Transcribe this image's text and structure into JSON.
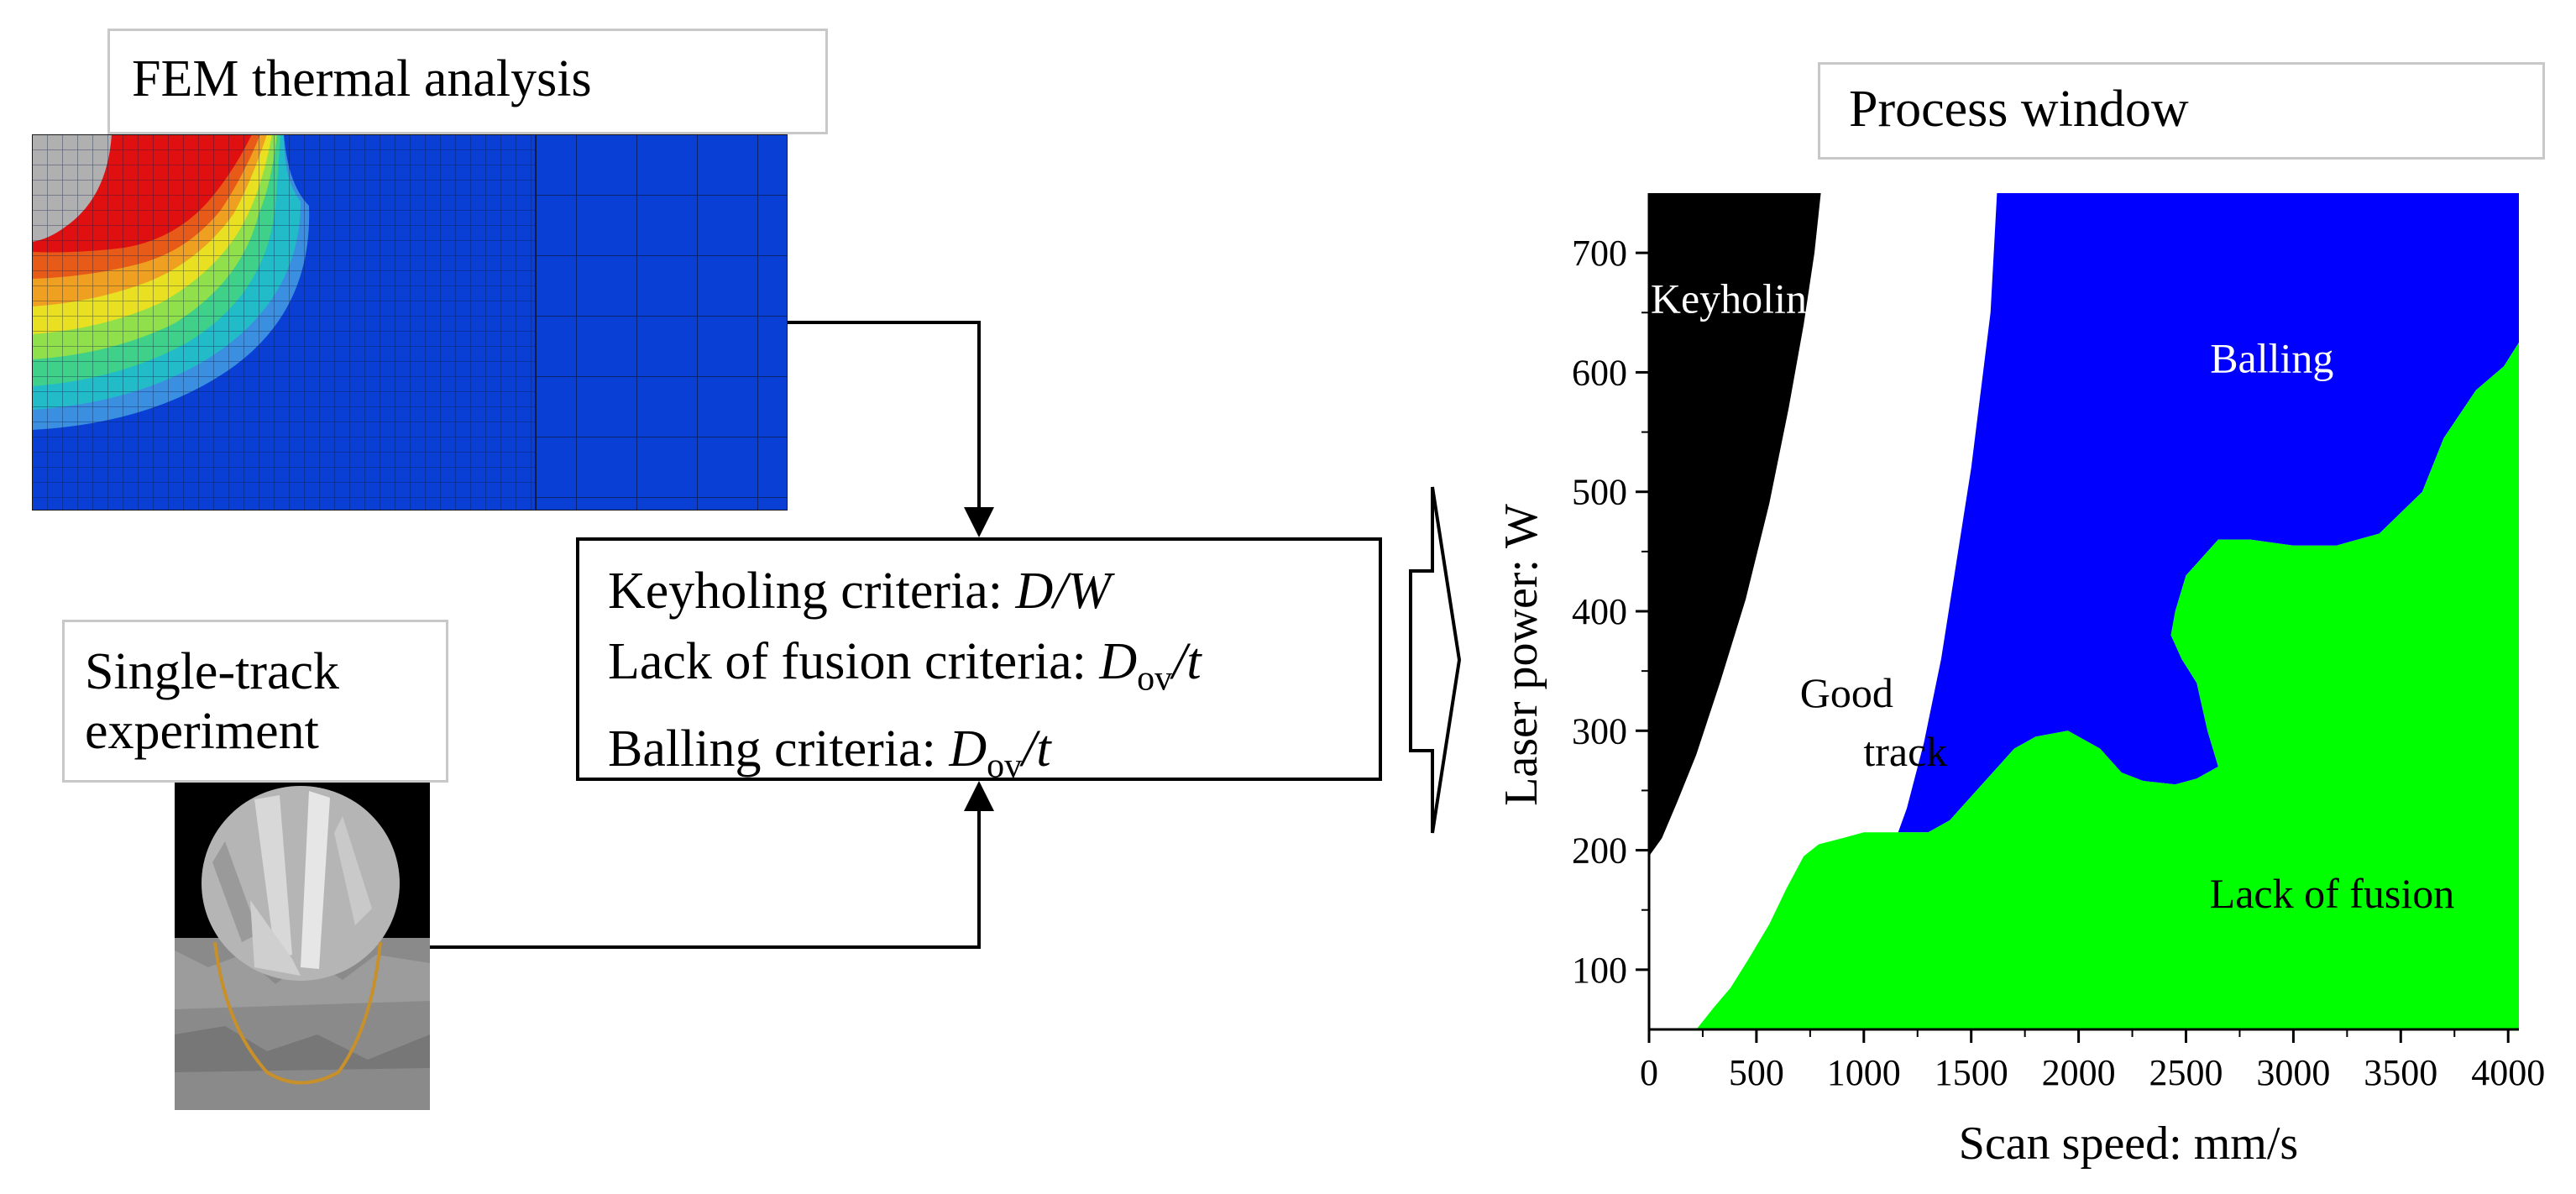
{
  "fem": {
    "label": "FEM thermal analysis"
  },
  "single_track": {
    "label_line1": "Single-track",
    "label_line2": "experiment"
  },
  "criteria": {
    "keyholing_label": "Keyholing criteria: ",
    "keyholing_expr": "D/W",
    "lof_label": "Lack of fusion criteria: ",
    "lof_var": "D",
    "lof_sub": "ov",
    "lof_tail": "/t",
    "balling_label": "Balling criteria: ",
    "balling_var": "D",
    "balling_sub": "ov",
    "balling_tail": "/t"
  },
  "process_window": {
    "label": "Process window"
  },
  "chart_data": {
    "type": "area",
    "title": "Process window",
    "xlabel": "Scan speed: mm/s",
    "ylabel": "Laser power: W",
    "xlim": [
      0,
      4050
    ],
    "ylim": [
      50,
      750
    ],
    "x_ticks": [
      0,
      500,
      1000,
      1500,
      2000,
      2500,
      3000,
      3500,
      4000
    ],
    "y_ticks": [
      100,
      200,
      300,
      400,
      500,
      600,
      700
    ],
    "regions": [
      {
        "name": "Keyholing",
        "color": "#000000",
        "label_color": "#ffffff",
        "label_at": [
          420,
          650
        ],
        "polygon": [
          [
            0,
            750
          ],
          [
            0,
            195
          ],
          [
            60,
            210
          ],
          [
            130,
            240
          ],
          [
            220,
            280
          ],
          [
            330,
            340
          ],
          [
            450,
            410
          ],
          [
            560,
            490
          ],
          [
            650,
            570
          ],
          [
            720,
            640
          ],
          [
            770,
            700
          ],
          [
            800,
            750
          ]
        ]
      },
      {
        "name": "Good track",
        "color": "#ffffff",
        "label_color": "#000000",
        "label_lines": [
          "Good",
          "track"
        ],
        "label_at": [
          920,
          320
        ]
      },
      {
        "name": "Balling",
        "color": "#0000ff",
        "label_color": "#ffffff",
        "label_at": [
          2900,
          600
        ],
        "polygon": [
          [
            1620,
            750
          ],
          [
            1590,
            650
          ],
          [
            1500,
            520
          ],
          [
            1430,
            440
          ],
          [
            1360,
            360
          ],
          [
            1280,
            290
          ],
          [
            1200,
            235
          ],
          [
            1160,
            215
          ],
          [
            1300,
            215
          ],
          [
            1400,
            225
          ],
          [
            1500,
            245
          ],
          [
            1600,
            265
          ],
          [
            1700,
            285
          ],
          [
            1800,
            295
          ],
          [
            1950,
            300
          ],
          [
            2000,
            295
          ],
          [
            2100,
            285
          ],
          [
            2150,
            275
          ],
          [
            2200,
            265
          ],
          [
            2300,
            258
          ],
          [
            2450,
            255
          ],
          [
            2550,
            260
          ],
          [
            2650,
            270
          ],
          [
            2600,
            300
          ],
          [
            2550,
            340
          ],
          [
            2480,
            360
          ],
          [
            2430,
            380
          ],
          [
            2450,
            400
          ],
          [
            2500,
            430
          ],
          [
            2550,
            440
          ],
          [
            2650,
            460
          ],
          [
            2800,
            460
          ],
          [
            3000,
            455
          ],
          [
            3200,
            455
          ],
          [
            3400,
            465
          ],
          [
            3600,
            500
          ],
          [
            3700,
            545
          ],
          [
            3850,
            585
          ],
          [
            3980,
            605
          ],
          [
            4050,
            625
          ],
          [
            4050,
            750
          ]
        ]
      },
      {
        "name": "Lack of fusion",
        "color": "#00ff00",
        "label_color": "#000000",
        "label_at": [
          3180,
          152
        ],
        "polygon": [
          [
            220,
            50
          ],
          [
            300,
            68
          ],
          [
            380,
            85
          ],
          [
            460,
            108
          ],
          [
            560,
            138
          ],
          [
            640,
            168
          ],
          [
            720,
            195
          ],
          [
            790,
            205
          ],
          [
            900,
            210
          ],
          [
            1000,
            215
          ],
          [
            1160,
            215
          ],
          [
            1300,
            215
          ],
          [
            1400,
            225
          ],
          [
            1500,
            245
          ],
          [
            1600,
            265
          ],
          [
            1700,
            285
          ],
          [
            1800,
            295
          ],
          [
            1950,
            300
          ],
          [
            2000,
            295
          ],
          [
            2100,
            285
          ],
          [
            2150,
            275
          ],
          [
            2200,
            265
          ],
          [
            2300,
            258
          ],
          [
            2450,
            255
          ],
          [
            2550,
            260
          ],
          [
            2650,
            270
          ],
          [
            2600,
            300
          ],
          [
            2550,
            340
          ],
          [
            2480,
            360
          ],
          [
            2430,
            380
          ],
          [
            2450,
            400
          ],
          [
            2500,
            430
          ],
          [
            2550,
            440
          ],
          [
            2650,
            460
          ],
          [
            2800,
            460
          ],
          [
            3000,
            455
          ],
          [
            3200,
            455
          ],
          [
            3400,
            465
          ],
          [
            3600,
            500
          ],
          [
            3700,
            545
          ],
          [
            3850,
            585
          ],
          [
            3980,
            605
          ],
          [
            4050,
            625
          ],
          [
            4050,
            50
          ]
        ]
      }
    ]
  }
}
